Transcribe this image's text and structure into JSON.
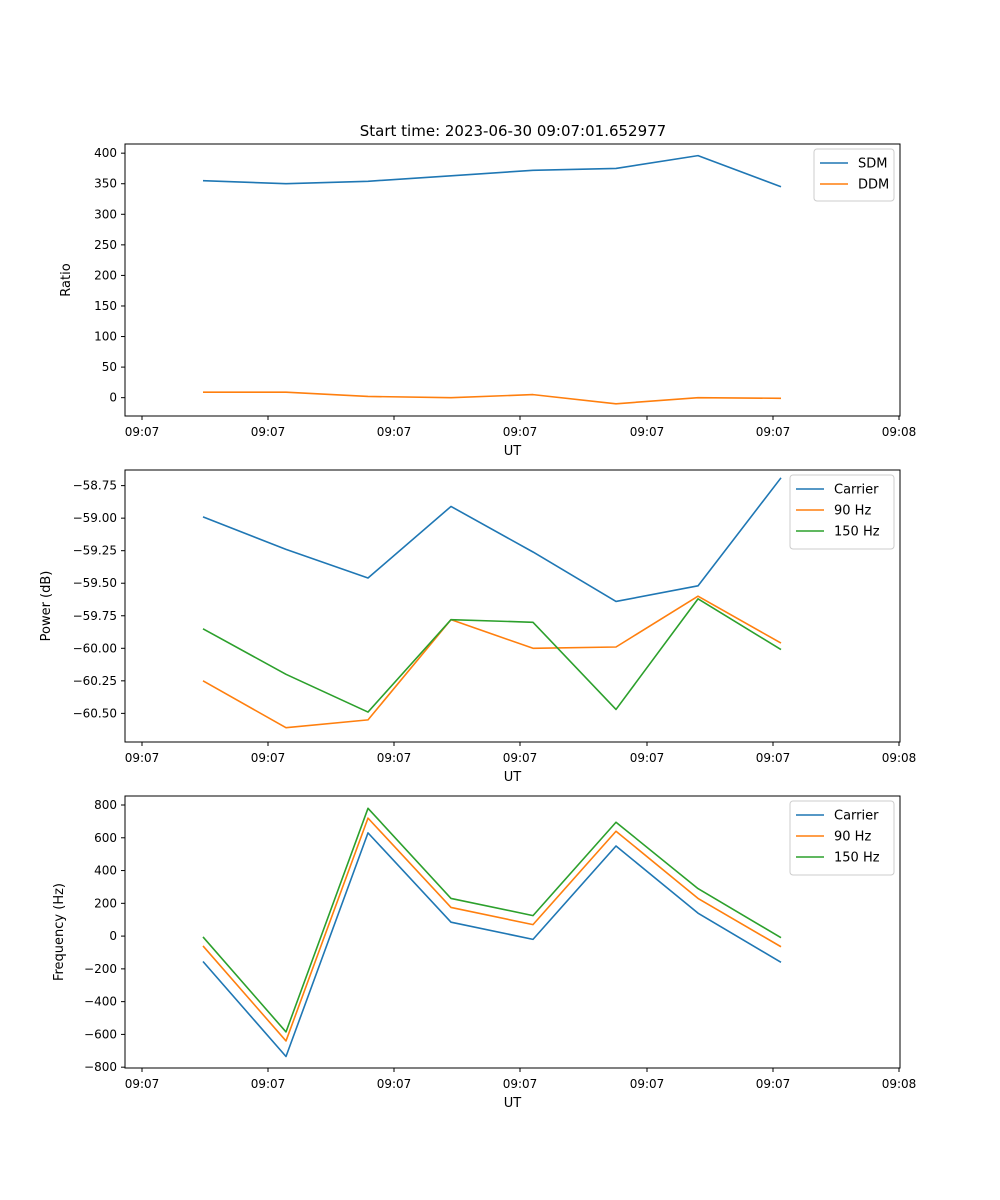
{
  "figure": {
    "title": "Start time: 2023-06-30 09:07:01.652977"
  },
  "chart_data": [
    {
      "type": "line",
      "title": "Start time: 2023-06-30 09:07:01.652977",
      "xlabel": "UT",
      "ylabel": "Ratio",
      "x_tick_labels": [
        "09:07",
        "09:07",
        "09:07",
        "09:07",
        "09:07",
        "09:07",
        "09:08"
      ],
      "x_points": 8,
      "ylim": [
        -30,
        415
      ],
      "yticks": [
        0,
        50,
        100,
        150,
        200,
        250,
        300,
        350,
        400
      ],
      "ytick_labels": [
        "0",
        "50",
        "100",
        "150",
        "200",
        "250",
        "300",
        "350",
        "400"
      ],
      "legend": "top-right",
      "grid": false,
      "series": [
        {
          "name": "SDM",
          "color": "#1f77b4",
          "values": [
            355,
            350,
            354,
            363,
            372,
            375,
            396,
            345
          ]
        },
        {
          "name": "DDM",
          "color": "#ff7f0e",
          "values": [
            9,
            9,
            2,
            0,
            5,
            -10,
            0,
            -1
          ]
        }
      ]
    },
    {
      "type": "line",
      "title": "",
      "xlabel": "UT",
      "ylabel": "Power (dB)",
      "x_tick_labels": [
        "09:07",
        "09:07",
        "09:07",
        "09:07",
        "09:07",
        "09:07",
        "09:08"
      ],
      "x_points": 8,
      "ylim": [
        -60.72,
        -58.63
      ],
      "yticks": [
        -60.5,
        -60.25,
        -60.0,
        -59.75,
        -59.5,
        -59.25,
        -59.0,
        -58.75
      ],
      "ytick_labels": [
        "−60.50",
        "−60.25",
        "−60.00",
        "−59.75",
        "−59.50",
        "−59.25",
        "−59.00",
        "−58.75"
      ],
      "legend": "top-right",
      "grid": false,
      "series": [
        {
          "name": "Carrier",
          "color": "#1f77b4",
          "values": [
            -58.99,
            -59.24,
            -59.46,
            -58.91,
            -59.26,
            -59.64,
            -59.52,
            -58.69
          ]
        },
        {
          "name": "90 Hz",
          "color": "#ff7f0e",
          "values": [
            -60.25,
            -60.61,
            -60.55,
            -59.78,
            -60.0,
            -59.99,
            -59.6,
            -59.96
          ]
        },
        {
          "name": "150 Hz",
          "color": "#2ca02c",
          "values": [
            -59.85,
            -60.2,
            -60.49,
            -59.78,
            -59.8,
            -60.47,
            -59.62,
            -60.01
          ]
        }
      ]
    },
    {
      "type": "line",
      "title": "",
      "xlabel": "UT",
      "ylabel": "Frequency (Hz)",
      "x_tick_labels": [
        "09:07",
        "09:07",
        "09:07",
        "09:07",
        "09:07",
        "09:07",
        "09:08"
      ],
      "x_points": 8,
      "ylim": [
        -805,
        855
      ],
      "yticks": [
        -800,
        -600,
        -400,
        -200,
        0,
        200,
        400,
        600,
        800
      ],
      "ytick_labels": [
        "−800",
        "−600",
        "−400",
        "−200",
        "0",
        "200",
        "400",
        "600",
        "800"
      ],
      "legend": "top-right",
      "grid": false,
      "series": [
        {
          "name": "Carrier",
          "color": "#1f77b4",
          "values": [
            -155,
            -735,
            630,
            85,
            -20,
            550,
            140,
            -160
          ]
        },
        {
          "name": "90 Hz",
          "color": "#ff7f0e",
          "values": [
            -60,
            -640,
            720,
            175,
            70,
            640,
            230,
            -65
          ]
        },
        {
          "name": "150 Hz",
          "color": "#2ca02c",
          "values": [
            -5,
            -585,
            780,
            230,
            125,
            695,
            290,
            -10
          ]
        }
      ]
    }
  ]
}
